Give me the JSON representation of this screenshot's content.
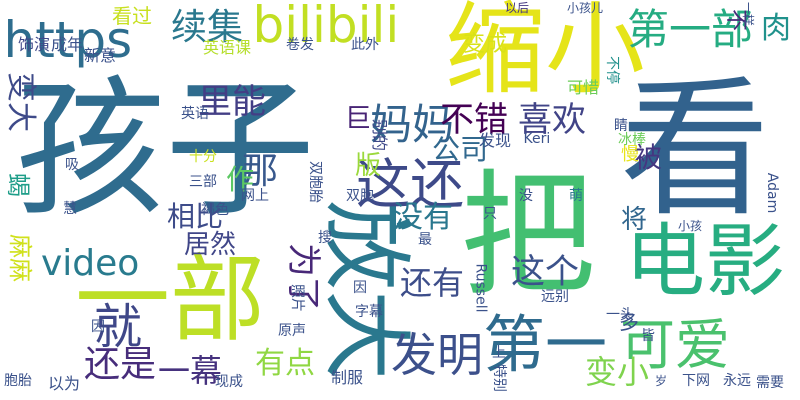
{
  "words": [
    {
      "text": "孩子",
      "color": "#2f6c8e"
    },
    {
      "text": "看",
      "color": "#32628d"
    },
    {
      "text": "把",
      "color": "#43bf71"
    },
    {
      "text": "缩小",
      "color": "#e5e419"
    },
    {
      "text": "一部",
      "color": "#bddf26"
    },
    {
      "text": "电影",
      "color": "#27ad81"
    },
    {
      "text": "放大",
      "color": "#2a788e"
    },
    {
      "text": "第一部",
      "color": "#25ac82"
    },
    {
      "text": "第一",
      "color": "#2f6b8e"
    },
    {
      "text": "可爱",
      "color": "#4ac16d"
    },
    {
      "text": "bilibili",
      "color": "#c2df23"
    },
    {
      "text": "https",
      "color": "#2e6d8e"
    },
    {
      "text": "video",
      "color": "#297b8e"
    },
    {
      "text": "这还",
      "color": "#3e4a89"
    },
    {
      "text": "发明",
      "color": "#3c508b"
    },
    {
      "text": "就",
      "color": "#3f4788"
    },
    {
      "text": "妈妈",
      "color": "#33638d"
    },
    {
      "text": "喜欢",
      "color": "#414487"
    },
    {
      "text": "续集",
      "color": "#2a788e"
    },
    {
      "text": "不错",
      "color": "#440154"
    },
    {
      "text": "里能",
      "color": "#433e85"
    },
    {
      "text": "那",
      "color": "#38588c"
    },
    {
      "text": "这个",
      "color": "#3b528b"
    },
    {
      "text": "还有",
      "color": "#3d4e8a"
    },
    {
      "text": "还是",
      "color": "#472d7b"
    },
    {
      "text": "一幕",
      "color": "#46327e"
    },
    {
      "text": "有点",
      "color": "#90d743"
    },
    {
      "text": "为了",
      "color": "#482878"
    },
    {
      "text": "变小",
      "color": "#7fd34e"
    },
    {
      "text": "没有",
      "color": "#2a778e"
    },
    {
      "text": "变大",
      "color": "#3e4a89"
    },
    {
      "text": "相比",
      "color": "#3e4c8a"
    },
    {
      "text": "居然",
      "color": "#404688"
    },
    {
      "text": "公司",
      "color": "#31688e"
    },
    {
      "text": "作",
      "color": "#5cc863"
    },
    {
      "text": "被",
      "color": "#453781"
    },
    {
      "text": "将",
      "color": "#31668e"
    },
    {
      "text": "肉",
      "color": "#20928c"
    },
    {
      "text": "巨",
      "color": "#482475"
    },
    {
      "text": "版",
      "color": "#9bd93c"
    },
    {
      "text": "蝎",
      "color": "#1f9e89"
    },
    {
      "text": "看过",
      "color": "#c8e020"
    },
    {
      "text": "变成",
      "color": "#d8e219"
    },
    {
      "text": "麻麻",
      "color": "#d0e11c"
    },
    {
      "text": "不",
      "color": "#482979"
    },
    {
      "text": "多",
      "color": "#3b528b"
    },
    {
      "text": "饰演",
      "color": "#3f4889"
    },
    {
      "text": "成年",
      "color": "#3b528b"
    },
    {
      "text": "新意",
      "color": "#3b528b"
    },
    {
      "text": "卷发",
      "color": "#3b528b"
    },
    {
      "text": "此外",
      "color": "#3b528b"
    },
    {
      "text": "英语课",
      "color": "#b5de2b"
    },
    {
      "text": "以后",
      "color": "#453882"
    },
    {
      "text": "小孩儿",
      "color": "#3b528b"
    },
    {
      "text": "可惜",
      "color": "#6ccd5a"
    },
    {
      "text": "不停",
      "color": "#21918c"
    },
    {
      "text": "睛",
      "color": "#3b528b"
    },
    {
      "text": "慢",
      "color": "#e7e419"
    },
    {
      "text": "冰棒",
      "color": "#6ccd5a"
    },
    {
      "text": "别的",
      "color": "#3e4989"
    },
    {
      "text": "发现",
      "color": "#3b528b"
    },
    {
      "text": "Keri",
      "color": "#3b528b"
    },
    {
      "text": "英语",
      "color": "#3b528b"
    },
    {
      "text": "十分",
      "color": "#cae11f"
    },
    {
      "text": "吸",
      "color": "#3b528b"
    },
    {
      "text": "三部",
      "color": "#3b528b"
    },
    {
      "text": "网上",
      "color": "#3b528b"
    },
    {
      "text": "双胞胎",
      "color": "#3b528b"
    },
    {
      "text": "双胞",
      "color": "#3b528b"
    },
    {
      "text": "没",
      "color": "#3b528b"
    },
    {
      "text": "萌",
      "color": "#2a788e"
    },
    {
      "text": "只",
      "color": "#3b528b"
    },
    {
      "text": "Adam",
      "color": "#3b528b"
    },
    {
      "text": "慧",
      "color": "#3b528b"
    },
    {
      "text": "褐色",
      "color": "#3b528b"
    },
    {
      "text": "搜",
      "color": "#3b528b"
    },
    {
      "text": "最",
      "color": "#3b528b"
    },
    {
      "text": "小孩",
      "color": "#3b528b"
    },
    {
      "text": "照片",
      "color": "#3b528b"
    },
    {
      "text": "因",
      "color": "#3b528b"
    },
    {
      "text": "Russell",
      "color": "#3b528b"
    },
    {
      "text": "远别",
      "color": "#3b528b"
    },
    {
      "text": "一头",
      "color": "#3b528b"
    },
    {
      "text": "字幕",
      "color": "#3b528b"
    },
    {
      "text": "皆",
      "color": "#3b528b"
    },
    {
      "text": "原声",
      "color": "#3b528b"
    },
    {
      "text": "因",
      "color": "#3b528b"
    },
    {
      "text": "以为",
      "color": "#3b528b"
    },
    {
      "text": "胞胎",
      "color": "#3b528b"
    },
    {
      "text": "现成",
      "color": "#3b528b"
    },
    {
      "text": "制服",
      "color": "#3b528b"
    },
    {
      "text": "特别",
      "color": "#3b528b"
    },
    {
      "text": "上",
      "color": "#3b528b"
    },
    {
      "text": "岁",
      "color": "#3b528b"
    },
    {
      "text": "下网",
      "color": "#3b528b"
    },
    {
      "text": "永远",
      "color": "#3b528b"
    },
    {
      "text": "需要",
      "color": "#3b528b"
    },
    {
      "text": "一样",
      "color": "#3b528b"
    }
  ]
}
